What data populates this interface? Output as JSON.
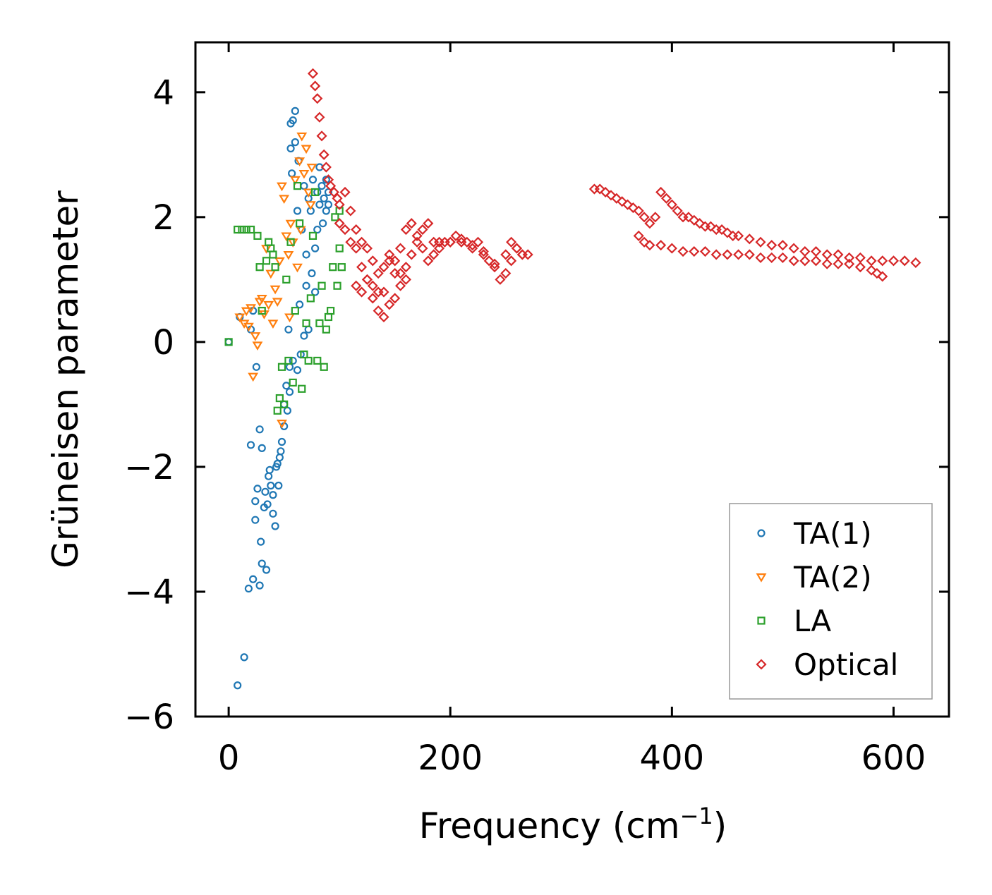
{
  "chart_data": {
    "type": "scatter",
    "title": "",
    "xlabel": "Frequency (cm",
    "xlabel_sup": "−1",
    "xlabel_close": ")",
    "ylabel": "Grüneisen parameter",
    "xlim": [
      -30,
      650
    ],
    "ylim": [
      -6,
      4.8
    ],
    "xticks": [
      0,
      200,
      400,
      600
    ],
    "xtick_labels": [
      "0",
      "200",
      "400",
      "600"
    ],
    "yticks": [
      -6,
      -4,
      -2,
      0,
      2,
      4
    ],
    "ytick_labels": [
      "−6",
      "−4",
      "−2",
      "0",
      "2",
      "4"
    ],
    "grid": false,
    "legend_position": "bottom-right",
    "series": [
      {
        "name": "TA(1)",
        "marker": "circle",
        "color": "#1f77b4",
        "x": [
          0,
          8,
          10,
          14,
          18,
          20,
          20,
          22,
          22,
          24,
          24,
          25,
          26,
          28,
          28,
          29,
          30,
          30,
          32,
          33,
          34,
          35,
          36,
          37,
          38,
          40,
          40,
          42,
          43,
          44,
          45,
          46,
          47,
          48,
          50,
          50,
          52,
          53,
          54,
          55,
          55,
          56,
          56,
          57,
          58,
          58,
          60,
          60,
          62,
          62,
          63,
          64,
          65,
          66,
          68,
          68,
          70,
          70,
          72,
          72,
          74,
          75,
          76,
          78,
          78,
          80,
          80,
          82,
          82,
          84,
          85,
          86,
          88,
          88,
          90,
          90
        ],
        "y": [
          0.0,
          -5.5,
          0.4,
          -5.05,
          -3.95,
          0.2,
          -1.65,
          -3.8,
          0.5,
          -2.85,
          -2.55,
          -0.4,
          -2.35,
          -3.9,
          -1.4,
          -3.2,
          -1.7,
          -3.55,
          -2.65,
          -2.4,
          -3.65,
          -2.6,
          -2.15,
          -2.05,
          -2.3,
          -2.75,
          -2.45,
          -2.95,
          -2.0,
          -1.95,
          -2.3,
          -1.85,
          -1.75,
          -1.6,
          -1.35,
          -1.0,
          -0.7,
          -1.1,
          0.2,
          -0.4,
          -0.8,
          3.5,
          3.1,
          2.7,
          3.55,
          -0.3,
          3.7,
          3.2,
          2.1,
          -0.45,
          2.9,
          0.6,
          -0.2,
          1.8,
          2.5,
          0.1,
          1.4,
          0.9,
          2.3,
          0.2,
          2.1,
          1.1,
          2.6,
          0.8,
          1.5,
          2.4,
          1.8,
          2.2,
          2.8,
          2.5,
          1.9,
          2.3,
          2.6,
          2.1,
          2.4,
          2.2
        ]
      },
      {
        "name": "TA(2)",
        "marker": "triangle",
        "color": "#ff7f0e",
        "x": [
          10,
          14,
          16,
          18,
          20,
          22,
          24,
          26,
          28,
          30,
          32,
          34,
          36,
          38,
          40,
          42,
          44,
          46,
          48,
          48,
          50,
          52,
          54,
          55,
          56,
          58,
          60,
          62,
          64,
          65,
          66,
          68,
          70,
          72,
          74,
          75
        ],
        "y": [
          0.4,
          0.3,
          0.5,
          0.25,
          0.55,
          -0.55,
          0.1,
          -0.05,
          0.65,
          0.7,
          0.45,
          1.5,
          0.6,
          1.1,
          0.3,
          0.85,
          0.65,
          1.3,
          2.5,
          -1.3,
          2.3,
          1.7,
          1.4,
          0.4,
          1.9,
          1.6,
          2.6,
          1.2,
          2.9,
          1.8,
          3.3,
          2.7,
          3.1,
          2.4,
          2.2,
          2.8
        ]
      },
      {
        "name": "LA",
        "marker": "square",
        "color": "#2ca02c",
        "x": [
          0,
          8,
          12,
          16,
          20,
          26,
          28,
          30,
          34,
          36,
          38,
          40,
          42,
          44,
          46,
          48,
          50,
          52,
          54,
          56,
          58,
          60,
          62,
          64,
          66,
          68,
          70,
          72,
          74,
          76,
          78,
          80,
          82,
          84,
          86,
          88,
          90,
          92,
          94,
          96,
          98,
          100,
          100,
          102
        ],
        "y": [
          0.0,
          1.8,
          1.8,
          1.8,
          1.8,
          1.7,
          1.2,
          0.5,
          1.3,
          1.6,
          1.5,
          1.4,
          1.2,
          -1.1,
          -0.9,
          -0.4,
          -1.0,
          1.0,
          -0.3,
          1.6,
          -0.65,
          0.5,
          2.5,
          1.9,
          -0.75,
          -0.2,
          0.3,
          -0.3,
          0.7,
          1.7,
          2.4,
          -0.3,
          0.3,
          0.9,
          -0.4,
          0.2,
          0.4,
          0.5,
          1.2,
          2.0,
          0.9,
          1.5,
          2.1,
          1.2
        ]
      },
      {
        "name": "Optical",
        "marker": "diamond",
        "color": "#d62728",
        "x": [
          76,
          78,
          80,
          82,
          84,
          86,
          88,
          90,
          92,
          95,
          98,
          100,
          105,
          110,
          115,
          120,
          125,
          130,
          135,
          140,
          145,
          150,
          155,
          160,
          165,
          170,
          175,
          180,
          185,
          190,
          195,
          200,
          205,
          210,
          215,
          220,
          225,
          230,
          235,
          240,
          245,
          250,
          255,
          260,
          265,
          270,
          330,
          335,
          340,
          345,
          350,
          355,
          360,
          365,
          370,
          375,
          380,
          385,
          390,
          395,
          400,
          405,
          410,
          415,
          420,
          425,
          430,
          435,
          440,
          445,
          450,
          455,
          460,
          470,
          480,
          490,
          500,
          510,
          520,
          530,
          540,
          550,
          560,
          570,
          580,
          590,
          600,
          610,
          620,
          590,
          585,
          580,
          570,
          560,
          550,
          540,
          530,
          520,
          510,
          500,
          490,
          480,
          470,
          460,
          450,
          440,
          430,
          420,
          410,
          400,
          390,
          380,
          375,
          370,
          115,
          120,
          125,
          130,
          135,
          140,
          145,
          150,
          155,
          160,
          165,
          170,
          175,
          180,
          185,
          190,
          200,
          210,
          220,
          230,
          240,
          250,
          255,
          260,
          265,
          100,
          105,
          110,
          115,
          120,
          125,
          130,
          135,
          140,
          145,
          150,
          155,
          160
        ],
        "y": [
          4.3,
          4.1,
          3.9,
          3.6,
          3.3,
          3.0,
          2.8,
          2.6,
          2.5,
          2.4,
          2.3,
          2.2,
          2.4,
          2.1,
          1.8,
          1.6,
          1.5,
          1.3,
          1.1,
          0.8,
          1.3,
          1.1,
          1.5,
          1.8,
          1.9,
          1.7,
          1.8,
          1.9,
          1.6,
          1.6,
          1.6,
          1.6,
          1.7,
          1.6,
          1.6,
          1.5,
          1.6,
          1.4,
          1.3,
          1.2,
          1.0,
          1.4,
          1.6,
          1.5,
          1.4,
          1.4,
          2.45,
          2.45,
          2.4,
          2.35,
          2.3,
          2.25,
          2.2,
          2.15,
          2.1,
          2.0,
          1.9,
          2.0,
          2.4,
          2.3,
          2.2,
          2.1,
          2.0,
          2.0,
          1.95,
          1.9,
          1.85,
          1.85,
          1.8,
          1.8,
          1.75,
          1.7,
          1.7,
          1.65,
          1.6,
          1.55,
          1.55,
          1.5,
          1.45,
          1.45,
          1.4,
          1.4,
          1.35,
          1.35,
          1.3,
          1.3,
          1.3,
          1.3,
          1.27,
          1.05,
          1.1,
          1.15,
          1.2,
          1.25,
          1.25,
          1.25,
          1.3,
          1.3,
          1.3,
          1.35,
          1.35,
          1.35,
          1.4,
          1.4,
          1.4,
          1.4,
          1.45,
          1.45,
          1.45,
          1.5,
          1.55,
          1.55,
          1.6,
          1.7,
          0.9,
          0.8,
          1.0,
          0.7,
          0.5,
          0.4,
          0.6,
          0.7,
          0.9,
          1.2,
          1.4,
          1.6,
          1.5,
          1.3,
          1.4,
          1.5,
          1.6,
          1.65,
          1.55,
          1.45,
          1.25,
          1.1,
          1.3,
          1.5,
          1.4,
          1.9,
          1.8,
          1.6,
          1.5,
          1.2,
          1.0,
          0.9,
          0.8,
          1.2,
          1.4,
          1.3,
          1.1,
          1.0
        ]
      }
    ]
  }
}
